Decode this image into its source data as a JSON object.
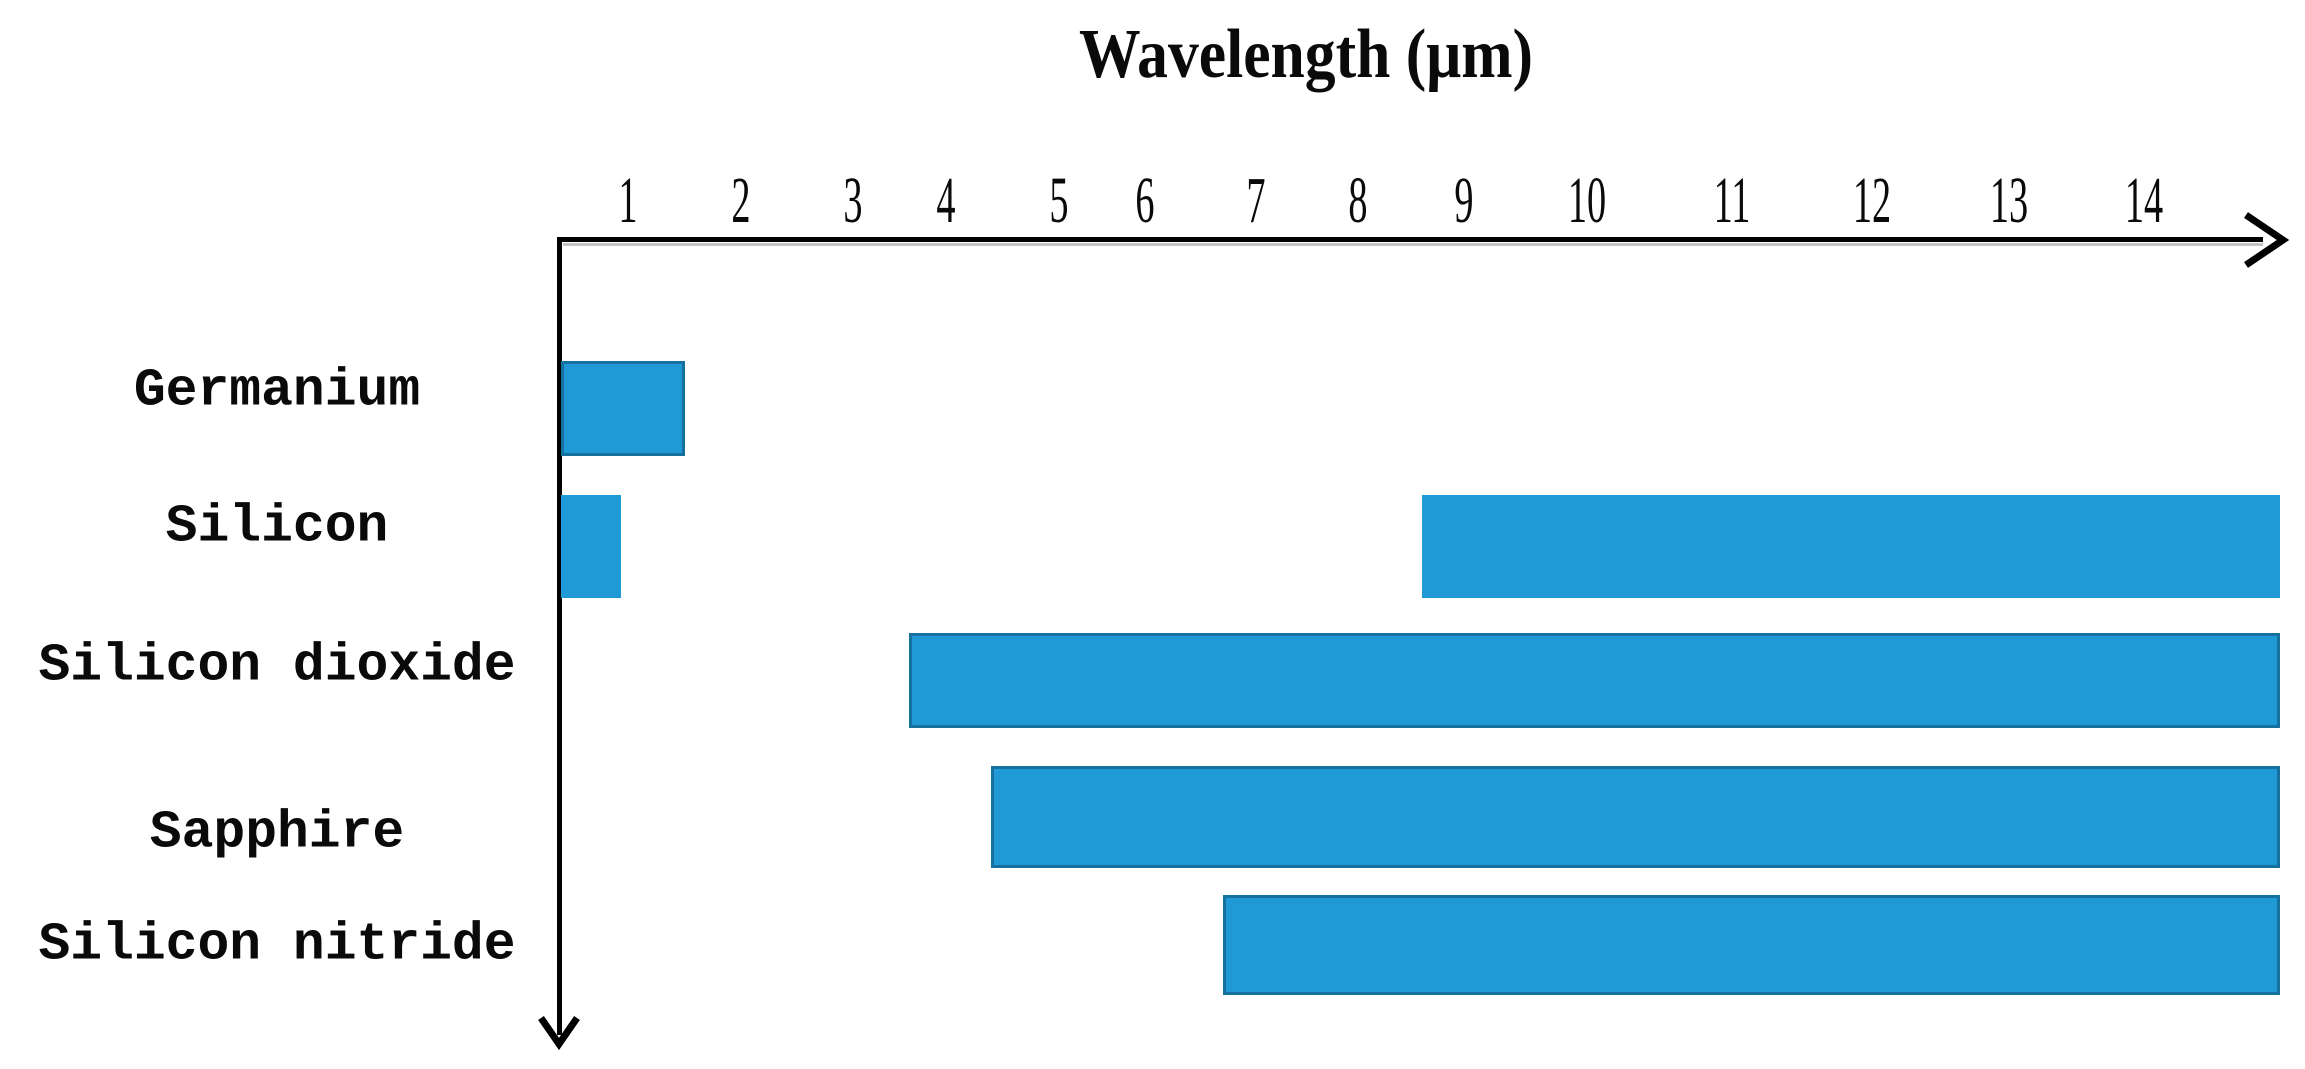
{
  "chart_data": {
    "type": "bar",
    "variant": "horizontal-range-bars",
    "title": "Wavelength (μm)",
    "x_axis": {
      "label": "Wavelength (μm)",
      "unit": "μm",
      "min": 0,
      "max": 15,
      "tick_values": [
        1,
        2,
        3,
        4,
        5,
        6,
        7,
        8,
        9,
        10,
        11,
        12,
        13,
        14
      ],
      "tick_labels": [
        "1",
        "2",
        "3",
        "4",
        "5",
        "6",
        "7",
        "8",
        "9",
        "10",
        "11",
        "12",
        "13",
        "14"
      ],
      "arrow": "right"
    },
    "y_axis": {
      "arrow": "down",
      "tick_labels": []
    },
    "rows": [
      {
        "label": "Germanium",
        "bands": [
          {
            "start": 0,
            "end": 1.5
          }
        ]
      },
      {
        "label": "Silicon",
        "bands": [
          {
            "start": 0,
            "end": 0.9
          },
          {
            "start": 8.6,
            "end": 15
          }
        ]
      },
      {
        "label": "Silicon dioxide",
        "bands": [
          {
            "start": 3.6,
            "end": 15
          }
        ]
      },
      {
        "label": "Sapphire",
        "bands": [
          {
            "start": 4.4,
            "end": 15
          }
        ]
      },
      {
        "label": "Silicon nitride",
        "bands": [
          {
            "start": 6.7,
            "end": 15
          }
        ]
      }
    ],
    "bar_fill_color": "#1f9ad6",
    "bar_border_color": "#17719f",
    "axis_color": "#000000",
    "grid": false,
    "legend": false
  }
}
